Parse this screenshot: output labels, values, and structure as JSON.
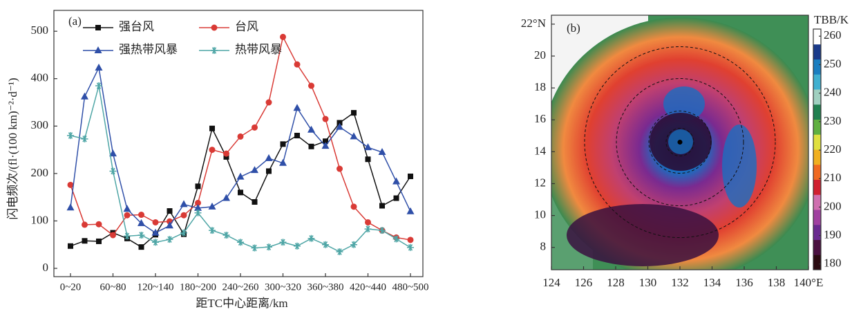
{
  "chart_data": [
    {
      "type": "line",
      "annotation": "(a)",
      "x_label": "距TC中心距离/km",
      "y_label": "闪电频次/(fl·(100 km)⁻²·d⁻¹)",
      "categories": [
        "0~20",
        null,
        null,
        "60~80",
        null,
        null,
        "120~140",
        null,
        null,
        "180~200",
        null,
        null,
        "240~260",
        null,
        null,
        "300~320",
        null,
        null,
        "360~380",
        null,
        null,
        "420~440",
        null,
        null,
        "480~500"
      ],
      "ylim": [
        -17.5,
        544
      ],
      "yticks": [
        0,
        100,
        200,
        300,
        400,
        500
      ],
      "series": [
        {
          "name": "强台风",
          "color": "#111111",
          "marker": "square",
          "values": [
            47,
            58,
            57,
            75,
            63,
            45,
            71,
            121,
            72,
            173,
            295,
            235,
            160,
            140,
            205,
            262,
            280,
            257,
            268,
            307,
            328,
            230,
            132,
            148,
            194
          ]
        },
        {
          "name": "台风",
          "color": "#d93a35",
          "marker": "circle",
          "values": [
            176,
            92,
            93,
            70,
            112,
            113,
            97,
            99,
            112,
            138,
            250,
            242,
            278,
            297,
            350,
            488,
            430,
            385,
            315,
            210,
            130,
            97,
            80,
            65,
            60
          ]
        },
        {
          "name": "强热带风暴",
          "color": "#2f4fa8",
          "marker": "triangle",
          "values": [
            128,
            362,
            423,
            242,
            125,
            95,
            75,
            90,
            135,
            127,
            130,
            148,
            193,
            207,
            232,
            222,
            338,
            292,
            258,
            298,
            278,
            255,
            245,
            183,
            120
          ]
        },
        {
          "name": "热带风暴",
          "color": "#4fa6a6",
          "marker": "star",
          "values": [
            280,
            273,
            385,
            205,
            68,
            70,
            55,
            61,
            75,
            117,
            80,
            70,
            55,
            43,
            45,
            55,
            47,
            63,
            50,
            35,
            50,
            83,
            80,
            62,
            44
          ]
        }
      ]
    },
    {
      "type": "map",
      "annotation": "(b)",
      "colorbar_label": "TBB/K",
      "xlim": [
        124,
        140
      ],
      "xticks": [
        124,
        126,
        128,
        130,
        132,
        134,
        136,
        138,
        {
          "value": 140,
          "label": "140°E"
        }
      ],
      "ylim": [
        6.6,
        22.56
      ],
      "yticks": [
        8,
        10,
        12,
        14,
        16,
        18,
        20,
        {
          "value": 22,
          "label": "22°N"
        }
      ],
      "center": [
        132,
        14.6
      ],
      "colorbar_lim": [
        178,
        262.5
      ],
      "colorbar_ticks": [
        180,
        190,
        200,
        210,
        220,
        230,
        240,
        250,
        260
      ],
      "colormap": [
        "#2a0a10",
        "#4a1040",
        "#6a2a90",
        "#a040a0",
        "#d070b0",
        "#d02030",
        "#f06a20",
        "#f0b020",
        "#e0e040",
        "#60b040",
        "#208050",
        "#a0d0c0",
        "#40b0d0",
        "#1a7ec0",
        "#1a3a8a",
        "#ffffff"
      ]
    }
  ]
}
